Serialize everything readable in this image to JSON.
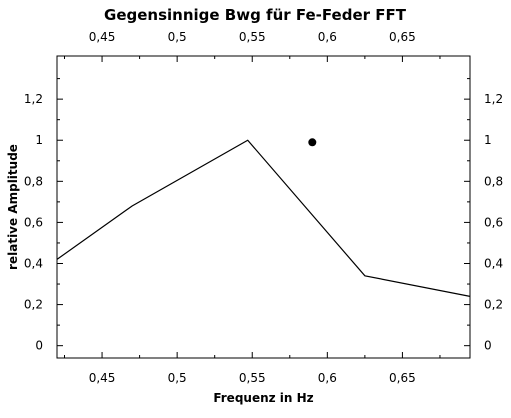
{
  "chart_data": {
    "type": "line",
    "title": "Gegensinnige Bwg für Fe-Feder FFT",
    "xlabel": "Frequenz in Hz",
    "ylabel": "relative Amplitude",
    "xlim": [
      0.42,
      0.695
    ],
    "ylim": [
      -0.06,
      1.41
    ],
    "x_ticks": [
      0.45,
      0.5,
      0.55,
      0.6,
      0.65
    ],
    "x_tick_labels": [
      "0,45",
      "0,5",
      "0,55",
      "0,6",
      "0,65"
    ],
    "y_ticks": [
      0,
      0.2,
      0.4,
      0.6,
      0.8,
      1,
      1.2
    ],
    "y_tick_labels": [
      "0",
      "0,2",
      "0,4",
      "0,6",
      "0,8",
      "1",
      "1,2"
    ],
    "grid": false,
    "mirror_axes": true,
    "series": [
      {
        "style": "line",
        "color": "#000000",
        "x": [
          0.42,
          0.47,
          0.547,
          0.625,
          0.695
        ],
        "y": [
          0.42,
          0.68,
          1.0,
          0.34,
          0.24
        ]
      },
      {
        "style": "marker",
        "color": "#000000",
        "x": [
          0.59
        ],
        "y": [
          0.99
        ]
      }
    ]
  }
}
